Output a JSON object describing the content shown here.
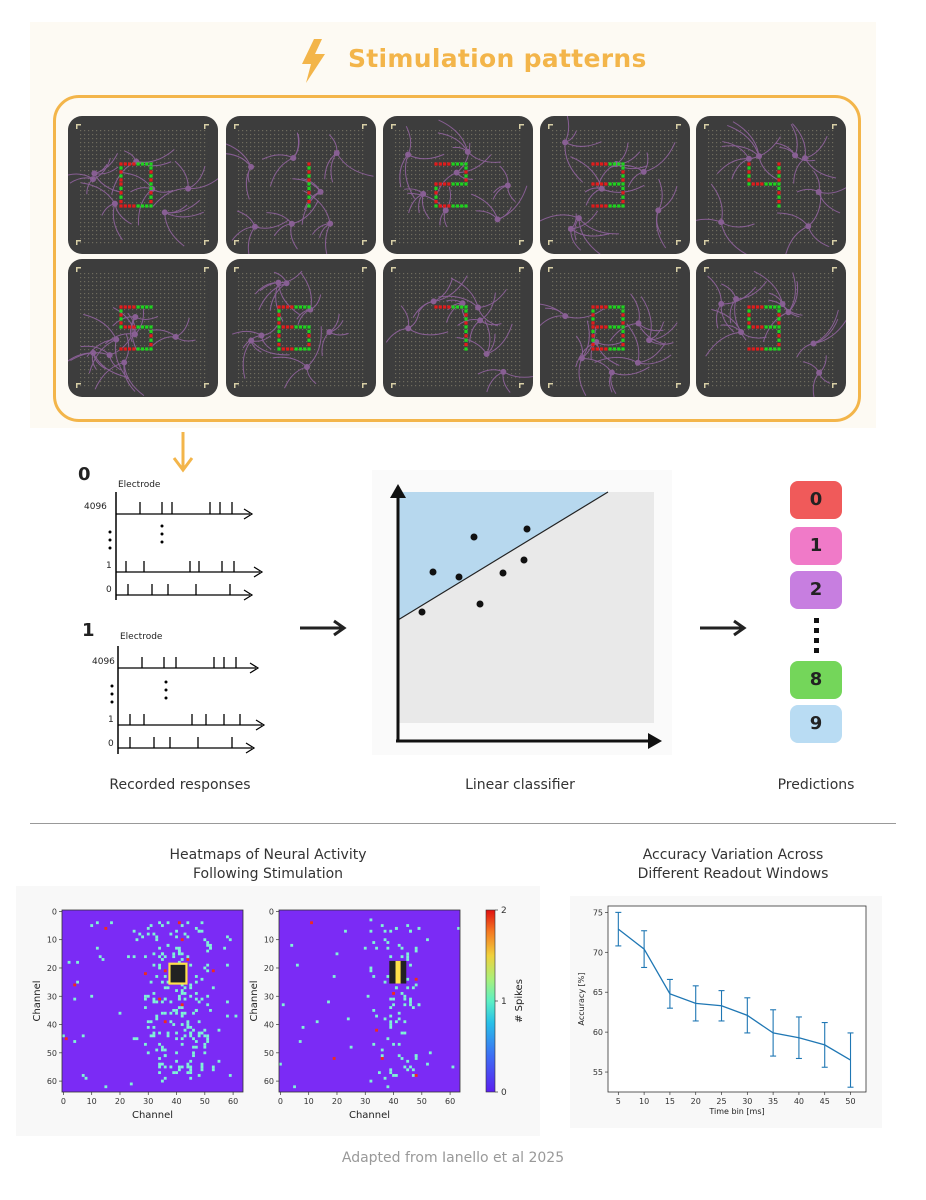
{
  "stimulation": {
    "title": "Stimulation patterns",
    "digits": [
      "0",
      "1",
      "2",
      "3",
      "4",
      "5",
      "6",
      "7",
      "8",
      "9"
    ],
    "colors": {
      "accent": "#f3b54a",
      "grid": "#3d3d3d",
      "green": "#1ed31e",
      "red": "#e01b1b",
      "neuron": "#a06ab0"
    }
  },
  "recorded": {
    "caption": "Recorded responses",
    "panels": [
      {
        "digit": "0",
        "axis_label": "Electrode",
        "rows": [
          "4096",
          "1",
          "0"
        ]
      },
      {
        "digit": "1",
        "axis_label": "Electrode",
        "rows": [
          "4096",
          "1",
          "0"
        ]
      }
    ]
  },
  "classifier": {
    "caption": "Linear classifier"
  },
  "predictions": {
    "caption": "Predictions",
    "items": [
      {
        "label": "0",
        "color": "#f05a5a"
      },
      {
        "label": "1",
        "color": "#f07ac8"
      },
      {
        "label": "2",
        "color": "#c77ee0"
      },
      {
        "label": "8",
        "color": "#74d65a"
      },
      {
        "label": "9",
        "color": "#b9dcf3"
      }
    ]
  },
  "heatmaps": {
    "title_line1": "Heatmaps of Neural Activity",
    "title_line2": "Following Stimulation",
    "xlabel": "Channel",
    "ylabel": "Channel",
    "x_ticks": [
      "0",
      "10",
      "20",
      "30",
      "40",
      "50",
      "60"
    ],
    "y_ticks": [
      "0",
      "10",
      "20",
      "30",
      "40",
      "50",
      "60"
    ],
    "colorbar_label": "# Spikes",
    "colorbar_ticks": [
      "0",
      "1",
      "2"
    ]
  },
  "chart_data": {
    "type": "line",
    "title": "Accuracy Variation Across Different Readout Windows",
    "xlabel": "Time bin [ms]",
    "ylabel": "Accuracy [%]",
    "x": [
      5,
      10,
      15,
      20,
      25,
      30,
      35,
      40,
      45,
      50
    ],
    "y": [
      72.9,
      70.4,
      64.8,
      63.6,
      63.3,
      62.1,
      59.9,
      59.3,
      58.4,
      56.5
    ],
    "yerr": [
      2.1,
      2.3,
      1.8,
      2.2,
      1.9,
      2.2,
      2.9,
      2.6,
      2.8,
      3.4
    ],
    "xlim": [
      3,
      53
    ],
    "ylim": [
      52.5,
      75.8
    ],
    "x_ticks": [
      "5",
      "10",
      "15",
      "20",
      "25",
      "30",
      "35",
      "40",
      "45",
      "50"
    ],
    "y_ticks": [
      "55",
      "60",
      "65",
      "70",
      "75"
    ],
    "grid": false,
    "color": "#1f77b4"
  },
  "footer": {
    "credit": "Adapted from Ianello et al 2025"
  }
}
